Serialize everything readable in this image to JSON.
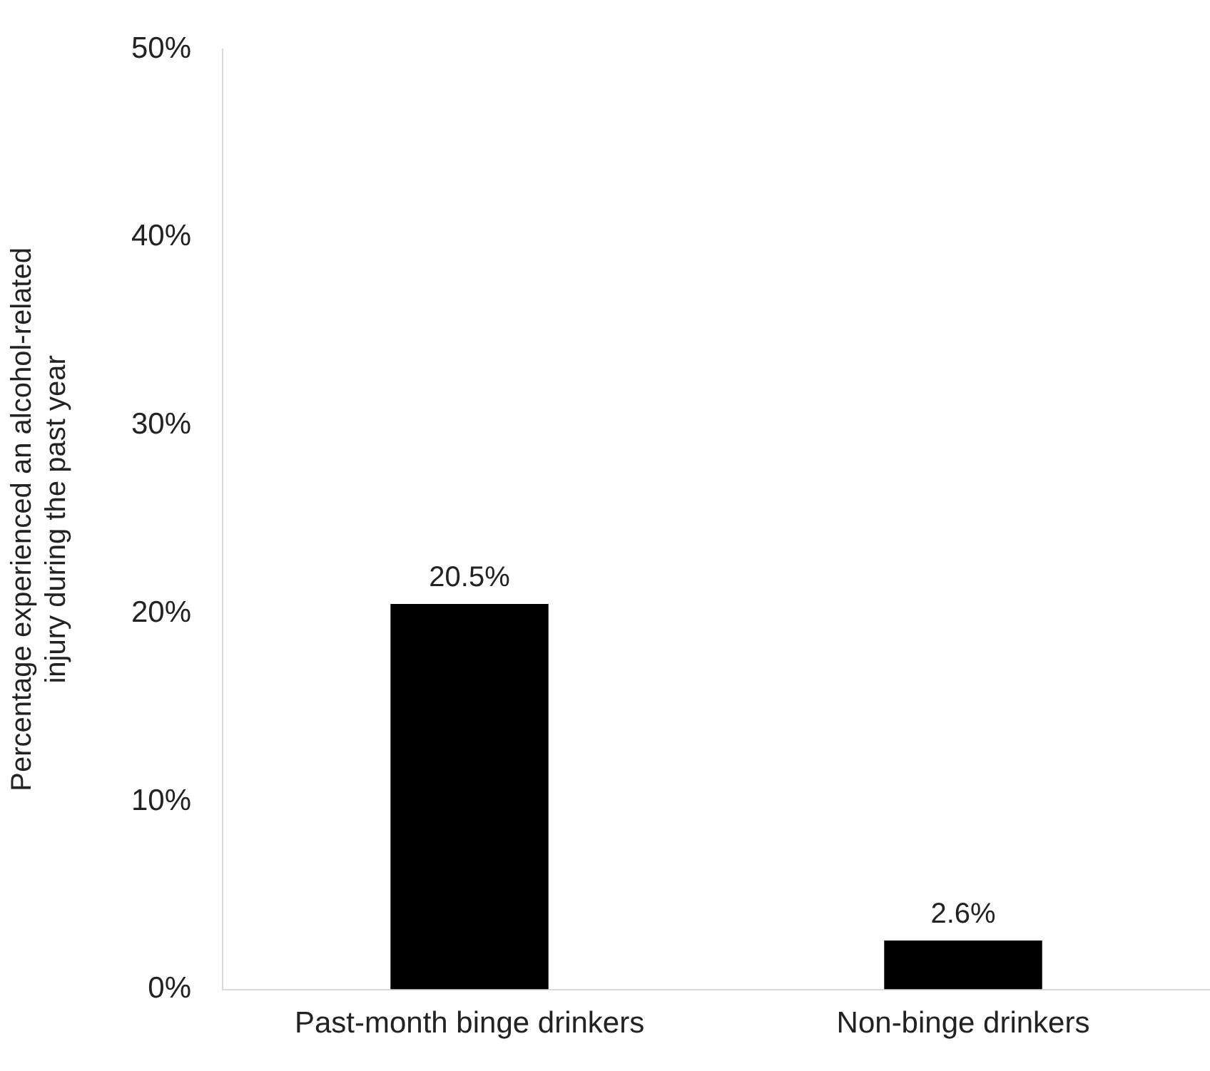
{
  "chart_data": {
    "type": "bar",
    "ylabel": "Percentage experienced an alcohol-related injury during the past year",
    "categories": [
      "Past-month binge drinkers",
      "Non-binge drinkers"
    ],
    "values": [
      20.5,
      2.6
    ],
    "color": "#000000",
    "value_labels": [
      "20.5%",
      "2.6%"
    ],
    "ylim": [
      0,
      50
    ],
    "yticks": [
      {
        "value": 0,
        "label": "0%"
      },
      {
        "value": 10,
        "label": "10%"
      },
      {
        "value": 20,
        "label": "20%"
      },
      {
        "value": 30,
        "label": "30%"
      },
      {
        "value": 40,
        "label": "40%"
      },
      {
        "value": 50,
        "label": "50%"
      }
    ],
    "grid": false,
    "legend": false
  }
}
